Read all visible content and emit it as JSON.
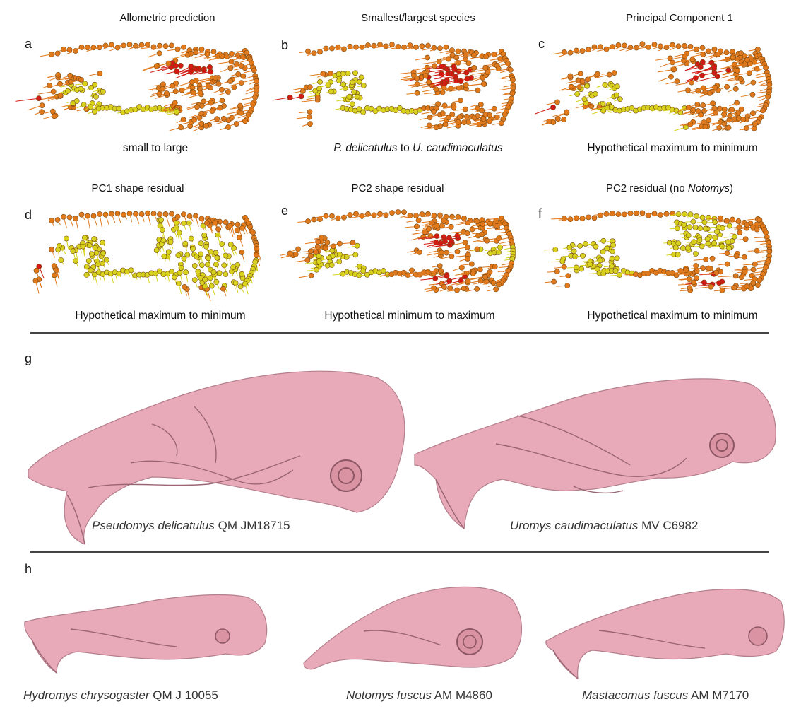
{
  "panels": [
    {
      "letter": "a",
      "title": "Allometric prediction",
      "caption": "small to large"
    },
    {
      "letter": "b",
      "title": "Smallest/largest species",
      "caption_i1": "P. delicatulus",
      "caption_mid": " to ",
      "caption_i2": "U. caudimaculatus"
    },
    {
      "letter": "c",
      "title": "Principal Component 1",
      "caption": "Hypothetical maximum to minimum"
    },
    {
      "letter": "d",
      "title": "PC1 shape residual",
      "caption": "Hypothetical maximum to minimum"
    },
    {
      "letter": "e",
      "title": "PC2 shape residual",
      "caption": "Hypothetical minimum to maximum"
    },
    {
      "letter": "f",
      "title_pre": "PC2 residual (no ",
      "title_i": "Notomys",
      "title_post": ")",
      "caption": "Hypothetical maximum to minimum"
    }
  ],
  "section_g": {
    "letter": "g",
    "specimens": [
      {
        "genus_species": "Pseudomys delicatulus",
        "id": " QM JM18715"
      },
      {
        "genus_species": "Uromys caudimaculatus",
        "id": " MV C6982"
      }
    ]
  },
  "section_h": {
    "letter": "h",
    "specimens": [
      {
        "genus_species": "Hydromys chrysogaster",
        "id": " QM J 10055"
      },
      {
        "genus_species": "Notomys fuscus",
        "id": " AM M4860"
      },
      {
        "genus_species": "Mastacomus fuscus",
        "id": " AM M7170"
      }
    ]
  },
  "colors": {
    "red": "#d21a14",
    "orange": "#e0781c",
    "yellow": "#d6d21e",
    "skull": "#e8aab8"
  }
}
